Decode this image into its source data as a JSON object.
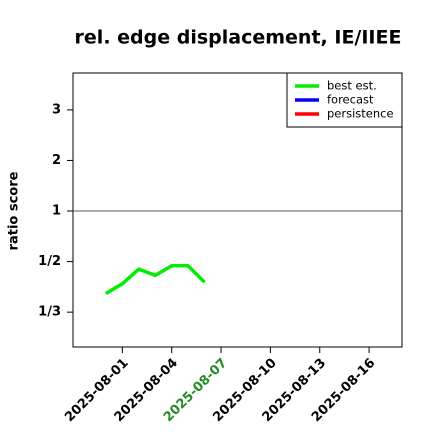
{
  "chart_data": {
    "type": "line",
    "title": "rel. edge displacement, IE/IIEE",
    "y_label": "ratio score",
    "y_scale": "ratio",
    "x": [
      "2025-07-31",
      "2025-08-01",
      "2025-08-02",
      "2025-08-03",
      "2025-08-04",
      "2025-08-05",
      "2025-08-06"
    ],
    "series": [
      {
        "name": "best est.",
        "color": "#00ee00",
        "values": [
          0.38,
          0.41,
          0.465,
          0.44,
          0.48,
          0.48,
          0.415
        ]
      },
      {
        "name": "forecast",
        "color": "#0000ff",
        "values": [
          null,
          null,
          null,
          null,
          null,
          null,
          null
        ]
      },
      {
        "name": "persistence",
        "color": "#ff0000",
        "values": [
          null,
          null,
          null,
          null,
          null,
          null,
          null
        ]
      }
    ],
    "xlim": [
      "2025-07-29",
      "2025-08-18"
    ],
    "xticks": [
      "2025-08-01",
      "2025-08-04",
      "2025-08-07",
      "2025-08-10",
      "2025-08-13",
      "2025-08-16"
    ],
    "highlight_xtick_index": 2,
    "highlight_color": "#228b22",
    "ylim": [
      0.271,
      3.73
    ],
    "yticks": [
      {
        "value": 0.3333,
        "label": "1/3"
      },
      {
        "value": 0.5,
        "label": "1/2"
      },
      1,
      2,
      3
    ],
    "reference_line": 1,
    "legend": "top-right"
  }
}
